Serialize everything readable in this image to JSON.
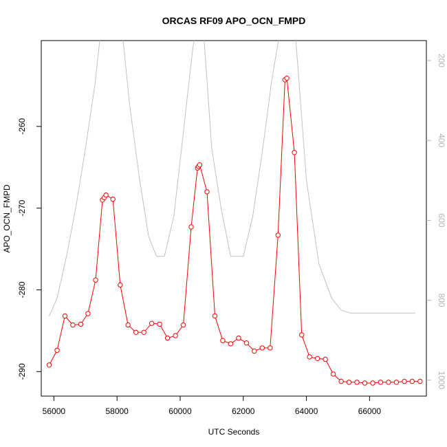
{
  "chart_data": {
    "type": "line",
    "title": "ORCAS RF09 APO_OCN_FMPD",
    "xlabel": "UTC Seconds",
    "ylabel": "APO_OCN_FMPD",
    "xlim": [
      55600,
      67800
    ],
    "ylim": [
      -293,
      -249.5
    ],
    "xticks": [
      56000,
      58000,
      60000,
      62000,
      64000,
      66000
    ],
    "yticks": [
      -290,
      -280,
      -270,
      -260
    ],
    "y2lim": [
      1040,
      150
    ],
    "y2ticks": [
      200,
      400,
      600,
      800,
      1000
    ],
    "grid": false,
    "series": [
      {
        "name": "",
        "color": "#ff0000",
        "marker": "open-circle",
        "x": [
          55850,
          56100,
          56350,
          56600,
          56850,
          57080,
          57320,
          57540,
          57600,
          57650,
          57870,
          58100,
          58350,
          58600,
          58850,
          59100,
          59350,
          59600,
          59850,
          60100,
          60350,
          60550,
          60580,
          60620,
          60850,
          61100,
          61350,
          61600,
          61850,
          62100,
          62350,
          62600,
          62850,
          63100,
          63320,
          63380,
          63620,
          63850,
          64100,
          64350,
          64600,
          64850,
          65100,
          65350,
          65600,
          65850,
          66100,
          66350,
          66600,
          66850,
          67100,
          67350,
          67600
        ],
        "y": [
          -289.2,
          -287.4,
          -283.2,
          -284.3,
          -284.2,
          -282.9,
          -278.8,
          -269.0,
          -268.7,
          -268.4,
          -268.9,
          -279.4,
          -284.3,
          -285.2,
          -285.2,
          -284.1,
          -284.2,
          -285.9,
          -285.6,
          -284.3,
          -272.3,
          -265.1,
          -264.9,
          -264.7,
          -268.0,
          -283.2,
          -286.2,
          -286.6,
          -285.9,
          -286.5,
          -287.5,
          -287.1,
          -287.1,
          -273.3,
          -254.3,
          -254.1,
          -263.2,
          -285.5,
          -288.2,
          -288.4,
          -288.5,
          -290.3,
          -291.2,
          -291.3,
          -291.3,
          -291.4,
          -291.4,
          -291.3,
          -291.3,
          -291.3,
          -291.2,
          -291.2,
          -291.2
        ]
      },
      {
        "name": "",
        "color": "#c0c0c0",
        "axis": "right",
        "x": [
          55850,
          56100,
          56400,
          56700,
          57000,
          57300,
          57550,
          57600,
          58100,
          58400,
          58700,
          59000,
          59250,
          59500,
          59800,
          60100,
          60400,
          60600,
          60700,
          61000,
          61300,
          61600,
          62000,
          62300,
          62600,
          62900,
          63200,
          63600,
          64000,
          64400,
          64800,
          65100,
          65400,
          67450
        ],
        "y": [
          840,
          795,
          690,
          565,
          420,
          260,
          80,
          80,
          80,
          310,
          490,
          640,
          690,
          690,
          590,
          380,
          170,
          80,
          80,
          420,
          570,
          690,
          690,
          590,
          430,
          250,
          110,
          80,
          500,
          710,
          795,
          825,
          832,
          832
        ]
      }
    ]
  }
}
